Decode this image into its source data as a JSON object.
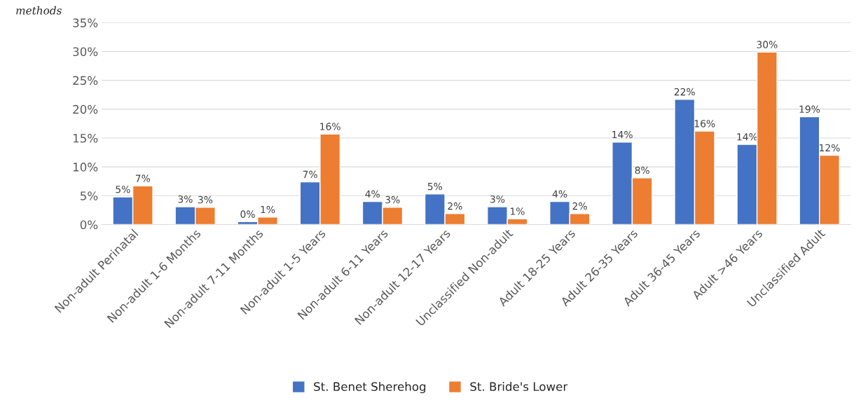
{
  "chart_data": {
    "type": "bar",
    "categories": [
      "Non-adult Perinatal",
      "Non-adult 1-6 Months",
      "Non-adult 7-11 Months",
      "Non-adult 1-5 Years",
      "Non-adult 6-11 Years",
      "Non-adult 12-17 Years",
      "Unclassified Non-adult",
      "Adult 18-25 Years",
      "Adult 26-35 Years",
      "Adult 36-45 Years",
      "Adult >46 Years",
      "Unclassified Adult"
    ],
    "series": [
      {
        "name": "St. Benet Sherehog",
        "color": "#4472c4",
        "values": [
          4.8,
          3.1,
          0.5,
          7.4,
          4.0,
          5.3,
          3.1,
          4.0,
          14.3,
          21.7,
          13.9,
          18.7
        ],
        "value_labels": [
          "5%",
          "3%",
          "0%",
          "7%",
          "4%",
          "5%",
          "3%",
          "4%",
          "14%",
          "22%",
          "14%",
          "19%"
        ]
      },
      {
        "name": "St. Bride's Lower",
        "color": "#ed7d31",
        "values": [
          6.7,
          3.0,
          1.3,
          15.7,
          3.0,
          1.9,
          1.0,
          1.9,
          8.1,
          16.2,
          29.9,
          12.0
        ],
        "value_labels": [
          "7%",
          "3%",
          "1%",
          "16%",
          "3%",
          "2%",
          "1%",
          "2%",
          "8%",
          "16%",
          "30%",
          "12%"
        ]
      }
    ],
    "ylim": [
      0,
      35
    ],
    "yticks": [
      {
        "value": 0,
        "label": "0%"
      },
      {
        "value": 5,
        "label": "5%"
      },
      {
        "value": 10,
        "label": "10%"
      },
      {
        "value": 15,
        "label": "15%"
      },
      {
        "value": 20,
        "label": "20%"
      },
      {
        "value": 25,
        "label": "25%"
      },
      {
        "value": 30,
        "label": "30%"
      },
      {
        "value": 35,
        "label": "35%"
      }
    ],
    "grid": "y",
    "legend": "bottom",
    "annotations": [
      "methods"
    ]
  }
}
